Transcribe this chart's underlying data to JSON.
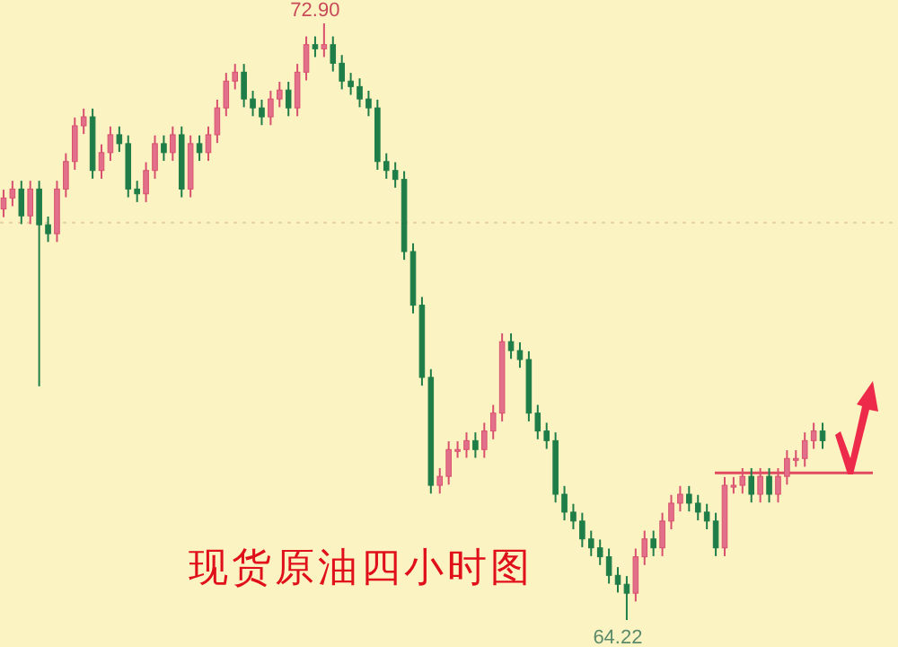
{
  "chart_data": {
    "type": "candlestick",
    "title": "现货原油四小时图",
    "categories": [
      null,
      null,
      null,
      null,
      null,
      null,
      null,
      null,
      null,
      null,
      null,
      null,
      null,
      null,
      null,
      null,
      null,
      null,
      null,
      null,
      null,
      null,
      null,
      null,
      null,
      null,
      null,
      null,
      null,
      null,
      null,
      null,
      null,
      null,
      null,
      null,
      null,
      null,
      null,
      null,
      null,
      null,
      null,
      null,
      null,
      null,
      null,
      null,
      null,
      null,
      null,
      null,
      null,
      null,
      null,
      null,
      null,
      null,
      null,
      null,
      null,
      null,
      null,
      null,
      null,
      null,
      null,
      null,
      null,
      null,
      null,
      null,
      null,
      null,
      null,
      null,
      null,
      null,
      null,
      null,
      null,
      null,
      null,
      null,
      null,
      null,
      null,
      null,
      null,
      null,
      null,
      null,
      null
    ],
    "ohlc": [
      [
        70.2,
        70.48,
        70.08,
        70.36
      ],
      [
        70.36,
        70.61,
        70.24,
        70.49
      ],
      [
        70.49,
        70.61,
        69.98,
        70.1
      ],
      [
        70.1,
        70.61,
        69.98,
        70.49
      ],
      [
        70.49,
        70.61,
        67.62,
        69.97
      ],
      [
        69.97,
        70.09,
        69.72,
        69.84
      ],
      [
        69.84,
        70.61,
        69.72,
        70.49
      ],
      [
        70.49,
        71.01,
        70.37,
        70.89
      ],
      [
        70.89,
        71.53,
        70.77,
        71.41
      ],
      [
        71.41,
        71.66,
        71.29,
        71.54
      ],
      [
        71.54,
        71.66,
        70.64,
        70.76
      ],
      [
        70.76,
        71.14,
        70.64,
        71.02
      ],
      [
        71.02,
        71.4,
        70.9,
        71.28
      ],
      [
        71.28,
        71.4,
        71.03,
        71.15
      ],
      [
        71.15,
        71.27,
        70.37,
        70.49
      ],
      [
        70.49,
        70.61,
        70.3,
        70.42
      ],
      [
        70.42,
        70.88,
        70.3,
        70.76
      ],
      [
        70.76,
        71.27,
        70.64,
        71.15
      ],
      [
        71.15,
        71.27,
        70.9,
        71.02
      ],
      [
        71.02,
        71.4,
        70.9,
        71.28
      ],
      [
        71.28,
        71.4,
        70.37,
        70.49
      ],
      [
        70.49,
        71.27,
        70.37,
        71.15
      ],
      [
        71.15,
        71.27,
        70.9,
        71.02
      ],
      [
        71.02,
        71.4,
        70.9,
        71.28
      ],
      [
        71.28,
        71.79,
        71.16,
        71.67
      ],
      [
        71.67,
        72.18,
        71.55,
        72.06
      ],
      [
        72.06,
        72.31,
        71.94,
        72.19
      ],
      [
        72.19,
        72.31,
        71.68,
        71.8
      ],
      [
        71.8,
        71.92,
        71.55,
        71.67
      ],
      [
        71.67,
        71.79,
        71.42,
        71.54
      ],
      [
        71.54,
        71.92,
        71.42,
        71.8
      ],
      [
        71.8,
        72.05,
        71.68,
        71.93
      ],
      [
        71.93,
        72.05,
        71.55,
        71.67
      ],
      [
        71.67,
        72.31,
        71.55,
        72.19
      ],
      [
        72.19,
        72.71,
        72.07,
        72.59
      ],
      [
        72.59,
        72.71,
        72.41,
        72.53
      ],
      [
        72.53,
        72.9,
        72.41,
        72.59
      ],
      [
        72.59,
        72.71,
        72.2,
        72.32
      ],
      [
        72.32,
        72.44,
        71.94,
        72.06
      ],
      [
        72.06,
        72.18,
        71.86,
        71.98
      ],
      [
        71.98,
        72.1,
        71.68,
        71.8
      ],
      [
        71.8,
        71.92,
        71.55,
        71.67
      ],
      [
        71.67,
        71.79,
        70.77,
        70.89
      ],
      [
        70.89,
        71.01,
        70.64,
        70.76
      ],
      [
        70.76,
        70.88,
        70.51,
        70.63
      ],
      [
        70.63,
        70.75,
        69.46,
        69.58
      ],
      [
        69.58,
        69.7,
        68.68,
        68.8
      ],
      [
        68.8,
        68.92,
        67.63,
        67.75
      ],
      [
        67.75,
        67.87,
        66.06,
        66.18
      ],
      [
        66.18,
        66.43,
        66.06,
        66.31
      ],
      [
        66.31,
        66.82,
        66.19,
        66.7
      ],
      [
        66.7,
        66.82,
        66.58,
        66.7
      ],
      [
        66.7,
        66.95,
        66.58,
        66.83
      ],
      [
        66.83,
        66.95,
        66.58,
        66.7
      ],
      [
        66.7,
        67.09,
        66.58,
        66.97
      ],
      [
        66.97,
        67.35,
        66.85,
        67.23
      ],
      [
        67.23,
        68.39,
        67.11,
        68.27
      ],
      [
        68.27,
        68.39,
        68.02,
        68.14
      ],
      [
        68.14,
        68.26,
        67.89,
        68.01
      ],
      [
        68.01,
        68.13,
        67.11,
        67.23
      ],
      [
        67.23,
        67.35,
        66.85,
        66.97
      ],
      [
        66.97,
        67.09,
        66.71,
        66.83
      ],
      [
        66.83,
        66.95,
        65.93,
        66.05
      ],
      [
        66.05,
        66.17,
        65.67,
        65.79
      ],
      [
        65.79,
        65.91,
        65.54,
        65.66
      ],
      [
        65.66,
        65.78,
        65.28,
        65.4
      ],
      [
        65.4,
        65.52,
        65.15,
        65.27
      ],
      [
        65.27,
        65.39,
        65.02,
        65.14
      ],
      [
        65.14,
        65.26,
        64.75,
        64.87
      ],
      [
        64.87,
        64.99,
        64.62,
        64.74
      ],
      [
        64.74,
        64.86,
        64.22,
        64.61
      ],
      [
        64.61,
        65.26,
        64.49,
        65.14
      ],
      [
        65.14,
        65.52,
        65.02,
        65.4
      ],
      [
        65.4,
        65.52,
        65.15,
        65.27
      ],
      [
        65.27,
        65.78,
        65.15,
        65.66
      ],
      [
        65.66,
        66.04,
        65.54,
        65.92
      ],
      [
        65.92,
        66.17,
        65.8,
        66.05
      ],
      [
        66.05,
        66.17,
        65.8,
        65.92
      ],
      [
        65.92,
        66.04,
        65.67,
        65.79
      ],
      [
        65.79,
        65.91,
        65.54,
        65.66
      ],
      [
        65.66,
        65.78,
        65.15,
        65.27
      ],
      [
        65.27,
        66.3,
        65.15,
        66.18
      ],
      [
        66.18,
        66.3,
        66.06,
        66.18
      ],
      [
        66.18,
        66.43,
        66.06,
        66.31
      ],
      [
        66.31,
        66.43,
        65.93,
        66.05
      ],
      [
        66.05,
        66.43,
        65.93,
        66.31
      ],
      [
        66.31,
        66.43,
        65.93,
        66.05
      ],
      [
        66.05,
        66.43,
        65.93,
        66.31
      ],
      [
        66.31,
        66.69,
        66.19,
        66.57
      ],
      [
        66.57,
        66.69,
        66.45,
        66.57
      ],
      [
        66.57,
        66.95,
        66.45,
        66.83
      ],
      [
        66.83,
        67.09,
        66.71,
        66.97
      ],
      [
        66.97,
        67.09,
        66.71,
        66.83
      ]
    ],
    "annotations": [
      {
        "text": "72.90",
        "y": 72.9
      },
      {
        "text": "64.22",
        "y": 64.22
      }
    ],
    "ref_lines": [
      {
        "axis": "y",
        "value": 70.0,
        "color": "#e6cfa0",
        "line_style": "dotted"
      },
      {
        "axis": "y",
        "value": 66.36,
        "color": "#e04a60",
        "line_style": "solid"
      }
    ]
  }
}
